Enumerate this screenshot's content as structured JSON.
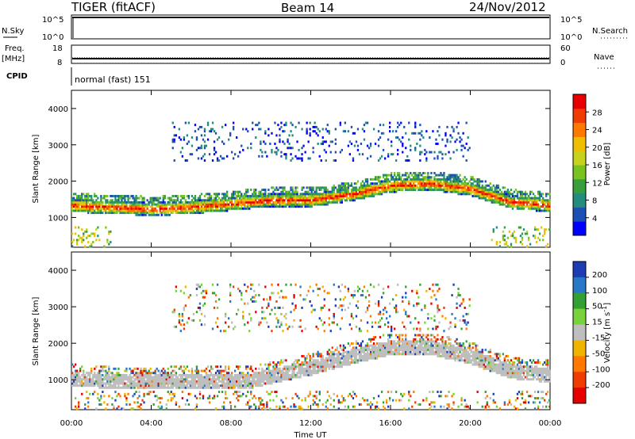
{
  "header": {
    "radar": "TIGER (fitACF)",
    "beam": "Beam 14",
    "date": "24/Nov/2012"
  },
  "panels": {
    "nsky": {
      "label": "N.Sky",
      "ticks": [
        "10^5",
        "10^0"
      ],
      "right_label": "N.Search",
      "right_ticks": [
        "10^5",
        "10^0"
      ]
    },
    "freq": {
      "label_top": "Freq.",
      "label_bottom": "[MHz]",
      "ticks": [
        "18",
        "8"
      ],
      "right_label": "Nave",
      "right_ticks": [
        "60",
        "0"
      ]
    },
    "cpid": {
      "label": "CPID",
      "value": "normal (fast) 151"
    }
  },
  "chart_data": [
    {
      "type": "heatmap",
      "name": "power",
      "ylabel": "Slant Range [km]",
      "ylim": [
        180,
        4500
      ],
      "y_ticks": [
        1000,
        2000,
        3000,
        4000
      ],
      "x_ticks": [
        "00:00",
        "04:00",
        "08:00",
        "12:00",
        "16:00",
        "20:00",
        "00:00"
      ],
      "xlim_hours": [
        0,
        24
      ],
      "colorbar": {
        "label": "Power [dB]",
        "range": [
          0,
          32
        ],
        "ticks": [
          4,
          8,
          12,
          16,
          20,
          24,
          28
        ],
        "colors": [
          "#0000ff",
          "#1e4fb4",
          "#238c7d",
          "#37a03c",
          "#78c31e",
          "#c8d21e",
          "#f0be00",
          "#ff7800",
          "#f03c00",
          "#e60000"
        ]
      },
      "echo_band": [
        {
          "t": 0,
          "r": 1300
        },
        {
          "t": 2,
          "r": 1250
        },
        {
          "t": 4,
          "r": 1200
        },
        {
          "t": 6,
          "r": 1250
        },
        {
          "t": 8,
          "r": 1350
        },
        {
          "t": 10,
          "r": 1450
        },
        {
          "t": 12,
          "r": 1450
        },
        {
          "t": 14,
          "r": 1600
        },
        {
          "t": 16,
          "r": 1850
        },
        {
          "t": 18,
          "r": 1900
        },
        {
          "t": 20,
          "r": 1750
        },
        {
          "t": 22,
          "r": 1400
        },
        {
          "t": 24,
          "r": 1300
        }
      ]
    },
    {
      "type": "heatmap",
      "name": "velocity",
      "ylabel": "Slant Range [km]",
      "ylim": [
        180,
        4500
      ],
      "y_ticks": [
        1000,
        2000,
        3000,
        4000
      ],
      "x_ticks": [
        "00:00",
        "04:00",
        "08:00",
        "12:00",
        "16:00",
        "20:00",
        "00:00"
      ],
      "xlabel": "Time UT",
      "colorbar": {
        "label": "Velocity [m s^-1]",
        "tick_labels": [
          "200",
          "100",
          "50",
          "15",
          "-15",
          "-50",
          "-100",
          "-200"
        ],
        "colors": [
          "#1e3cb4",
          "#2878c8",
          "#32a032",
          "#78d23c",
          "#bebebe",
          "#f0b400",
          "#ff7800",
          "#f03c00",
          "#e60000"
        ]
      },
      "ground_scatter_band": [
        {
          "t": 0,
          "r": 1000
        },
        {
          "t": 3,
          "r": 900
        },
        {
          "t": 6,
          "r": 950
        },
        {
          "t": 9,
          "r": 950
        },
        {
          "t": 12,
          "r": 1300
        },
        {
          "t": 14,
          "r": 1600
        },
        {
          "t": 16,
          "r": 1850
        },
        {
          "t": 18,
          "r": 1850
        },
        {
          "t": 20,
          "r": 1600
        },
        {
          "t": 22,
          "r": 1200
        },
        {
          "t": 24,
          "r": 1100
        }
      ]
    }
  ]
}
